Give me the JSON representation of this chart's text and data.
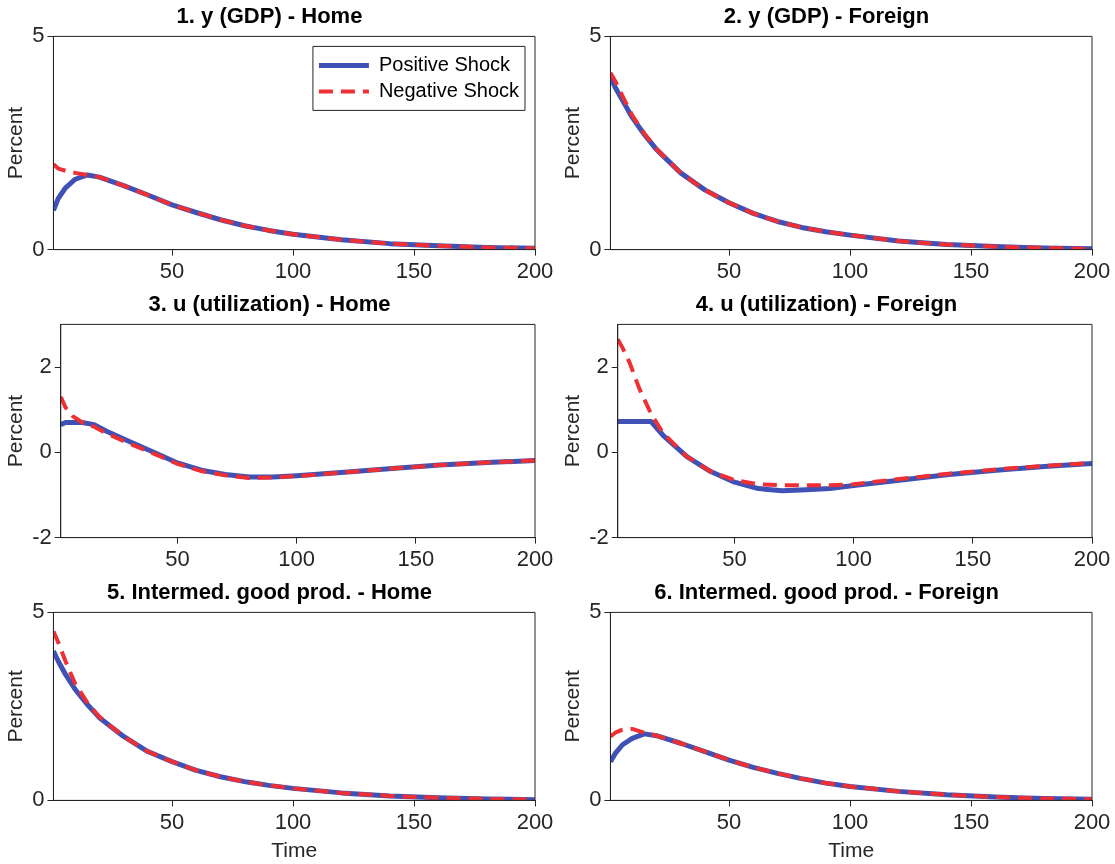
{
  "chart_data": [
    {
      "type": "line",
      "title": "1. y (GDP) - Home",
      "ylabel": "Percent",
      "legend": "top right",
      "x": [
        1,
        3,
        6,
        10,
        15,
        20,
        30,
        40,
        50,
        60,
        70,
        80,
        90,
        100,
        120,
        140,
        160,
        180,
        200
      ],
      "xlim": [
        1,
        200
      ],
      "xticks": [
        50,
        100,
        150,
        200
      ],
      "ylim": [
        0,
        5
      ],
      "yticks": [
        0,
        5
      ],
      "series": [
        {
          "name": "Positive Shock",
          "color": "#3f51b5",
          "line_style": "solid",
          "values": [
            0.92,
            1.2,
            1.45,
            1.65,
            1.75,
            1.7,
            1.5,
            1.28,
            1.05,
            0.87,
            0.7,
            0.56,
            0.45,
            0.36,
            0.23,
            0.14,
            0.09,
            0.05,
            0.03
          ]
        },
        {
          "name": "Negative Shock",
          "color": "#ee3035",
          "line_style": "dashed",
          "values": [
            2.0,
            1.9,
            1.85,
            1.8,
            1.75,
            1.7,
            1.5,
            1.28,
            1.05,
            0.87,
            0.7,
            0.56,
            0.45,
            0.36,
            0.23,
            0.14,
            0.09,
            0.05,
            0.03
          ]
        }
      ]
    },
    {
      "type": "line",
      "title": "2. y (GDP) - Foreign",
      "ylabel": "Percent",
      "x": [
        1,
        3,
        6,
        10,
        15,
        20,
        30,
        40,
        50,
        60,
        70,
        80,
        90,
        100,
        120,
        140,
        160,
        180,
        200
      ],
      "xlim": [
        1,
        200
      ],
      "xticks": [
        50,
        100,
        150,
        200
      ],
      "ylim": [
        0,
        5
      ],
      "yticks": [
        0,
        5
      ],
      "series": [
        {
          "color": "#3f51b5",
          "line_style": "solid",
          "values": [
            4.05,
            3.8,
            3.5,
            3.1,
            2.7,
            2.35,
            1.8,
            1.4,
            1.1,
            0.85,
            0.66,
            0.52,
            0.42,
            0.34,
            0.2,
            0.12,
            0.07,
            0.04,
            0.02
          ]
        },
        {
          "color": "#ee3035",
          "line_style": "dashed",
          "values": [
            4.15,
            3.95,
            3.6,
            3.15,
            2.72,
            2.36,
            1.8,
            1.4,
            1.1,
            0.85,
            0.66,
            0.52,
            0.42,
            0.34,
            0.2,
            0.12,
            0.07,
            0.04,
            0.02
          ]
        }
      ]
    },
    {
      "type": "line",
      "title": "3. u (utilization) - Home",
      "ylabel": "Percent",
      "x": [
        1,
        3,
        6,
        10,
        15,
        20,
        30,
        40,
        50,
        60,
        70,
        80,
        90,
        100,
        120,
        140,
        160,
        180,
        200
      ],
      "xlim": [
        1,
        200
      ],
      "xticks": [
        50,
        100,
        150,
        200
      ],
      "ylim": [
        -2,
        3
      ],
      "yticks": [
        -2,
        0,
        2
      ],
      "series": [
        {
          "color": "#3f51b5",
          "line_style": "solid",
          "values": [
            0.65,
            0.7,
            0.7,
            0.7,
            0.65,
            0.5,
            0.25,
            0.0,
            -0.25,
            -0.42,
            -0.52,
            -0.58,
            -0.58,
            -0.55,
            -0.47,
            -0.38,
            -0.3,
            -0.24,
            -0.19
          ]
        },
        {
          "color": "#ee3035",
          "line_style": "dashed",
          "values": [
            1.3,
            1.05,
            0.85,
            0.7,
            0.6,
            0.45,
            0.2,
            -0.03,
            -0.27,
            -0.44,
            -0.54,
            -0.6,
            -0.59,
            -0.56,
            -0.47,
            -0.38,
            -0.3,
            -0.24,
            -0.19
          ]
        }
      ]
    },
    {
      "type": "line",
      "title": "4. u (utilization) - Foreign",
      "ylabel": "Percent",
      "x": [
        1,
        3,
        6,
        10,
        15,
        20,
        30,
        40,
        50,
        60,
        70,
        80,
        90,
        100,
        120,
        140,
        160,
        180,
        200
      ],
      "xlim": [
        1,
        200
      ],
      "xticks": [
        50,
        100,
        150,
        200
      ],
      "ylim": [
        -2,
        3
      ],
      "yticks": [
        -2,
        0,
        2
      ],
      "series": [
        {
          "color": "#3f51b5",
          "line_style": "solid",
          "values": [
            0.72,
            0.72,
            0.72,
            0.72,
            0.72,
            0.4,
            -0.1,
            -0.45,
            -0.7,
            -0.85,
            -0.9,
            -0.88,
            -0.85,
            -0.78,
            -0.65,
            -0.52,
            -0.42,
            -0.33,
            -0.26
          ]
        },
        {
          "color": "#ee3035",
          "line_style": "dashed",
          "values": [
            2.65,
            2.45,
            2.1,
            1.5,
            0.9,
            0.45,
            -0.1,
            -0.45,
            -0.65,
            -0.75,
            -0.77,
            -0.77,
            -0.77,
            -0.75,
            -0.62,
            -0.5,
            -0.4,
            -0.32,
            -0.25
          ]
        }
      ]
    },
    {
      "type": "line",
      "title": "5. Intermed. good prod. - Home",
      "xlabel": "Time",
      "ylabel": "Percent",
      "x": [
        1,
        3,
        6,
        10,
        15,
        20,
        30,
        40,
        50,
        60,
        70,
        80,
        90,
        100,
        120,
        140,
        160,
        180,
        200
      ],
      "xlim": [
        1,
        200
      ],
      "xticks": [
        50,
        100,
        150,
        200
      ],
      "ylim": [
        0,
        5
      ],
      "yticks": [
        0,
        5
      ],
      "series": [
        {
          "color": "#3f51b5",
          "line_style": "solid",
          "values": [
            3.97,
            3.7,
            3.35,
            2.95,
            2.55,
            2.2,
            1.7,
            1.3,
            1.03,
            0.8,
            0.63,
            0.5,
            0.4,
            0.32,
            0.2,
            0.12,
            0.07,
            0.04,
            0.02
          ]
        },
        {
          "color": "#ee3035",
          "line_style": "dashed",
          "values": [
            4.5,
            4.2,
            3.7,
            3.1,
            2.6,
            2.22,
            1.7,
            1.3,
            1.03,
            0.8,
            0.63,
            0.5,
            0.4,
            0.32,
            0.2,
            0.12,
            0.07,
            0.04,
            0.02
          ]
        }
      ]
    },
    {
      "type": "line",
      "title": "6. Intermed. good prod. - Foreign",
      "xlabel": "Time",
      "ylabel": "Percent",
      "x": [
        1,
        3,
        6,
        10,
        15,
        20,
        30,
        40,
        50,
        60,
        70,
        80,
        90,
        100,
        120,
        140,
        160,
        180,
        200
      ],
      "xlim": [
        1,
        200
      ],
      "xticks": [
        50,
        100,
        150,
        200
      ],
      "ylim": [
        0,
        5
      ],
      "yticks": [
        0,
        5
      ],
      "series": [
        {
          "color": "#3f51b5",
          "line_style": "solid",
          "values": [
            1.03,
            1.25,
            1.48,
            1.65,
            1.77,
            1.72,
            1.52,
            1.3,
            1.07,
            0.88,
            0.72,
            0.58,
            0.46,
            0.37,
            0.24,
            0.15,
            0.09,
            0.05,
            0.03
          ]
        },
        {
          "color": "#ee3035",
          "line_style": "dashed",
          "values": [
            1.7,
            1.8,
            1.88,
            1.9,
            1.8,
            1.72,
            1.52,
            1.3,
            1.07,
            0.88,
            0.72,
            0.58,
            0.46,
            0.37,
            0.24,
            0.15,
            0.09,
            0.05,
            0.03
          ]
        }
      ]
    }
  ]
}
